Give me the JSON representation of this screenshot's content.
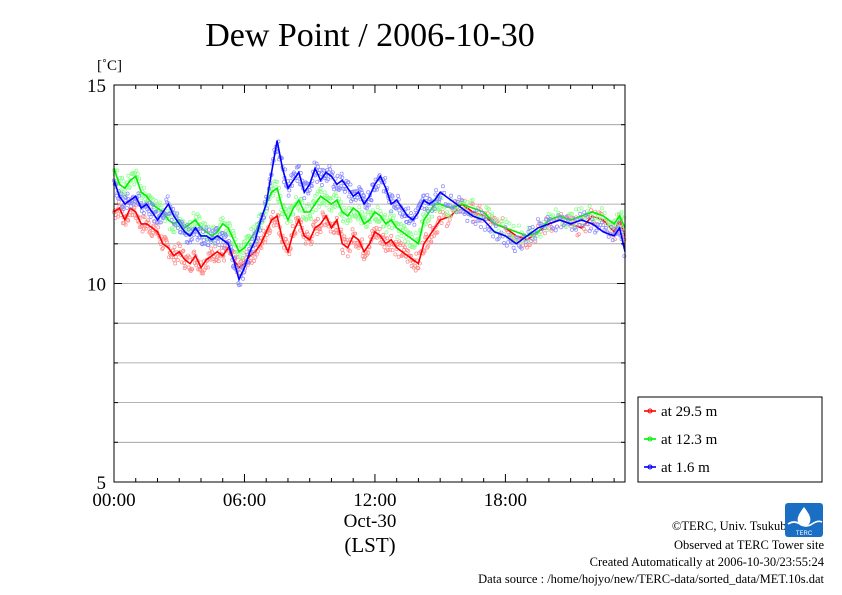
{
  "chart_data": {
    "type": "line",
    "title": "Dew Point / 2006-10-30",
    "ylabel": "[˚C]",
    "xlabel": "(LST)",
    "date_label": "Oct-30",
    "ylim": [
      5,
      15
    ],
    "xlim": [
      0,
      23.5
    ],
    "yticks": [
      5,
      10,
      15
    ],
    "ytick_labels": [
      "5",
      "10",
      "15"
    ],
    "xticks": [
      0,
      6,
      12,
      18
    ],
    "xtick_labels": [
      "00:00",
      "06:00",
      "12:00",
      "18:00"
    ],
    "grid": true,
    "legend_position": "lower-right, outside plot",
    "series": [
      {
        "name": "at 29.5 m",
        "color": "#ff0000",
        "x": [
          0,
          0.25,
          0.5,
          0.75,
          1,
          1.25,
          1.5,
          1.75,
          2,
          2.25,
          2.5,
          2.75,
          3,
          3.25,
          3.5,
          3.75,
          4,
          4.25,
          4.5,
          4.75,
          5,
          5.25,
          5.5,
          5.75,
          6,
          6.25,
          6.5,
          6.75,
          7,
          7.25,
          7.5,
          7.75,
          8,
          8.25,
          8.5,
          8.75,
          9,
          9.25,
          9.5,
          9.75,
          10,
          10.25,
          10.5,
          10.75,
          11,
          11.25,
          11.5,
          11.75,
          12,
          12.25,
          12.5,
          12.75,
          13,
          13.25,
          13.5,
          13.75,
          14,
          14.25,
          14.5,
          14.75,
          15,
          15.5,
          16,
          16.5,
          17,
          17.5,
          18,
          18.5,
          19,
          19.5,
          20,
          20.5,
          21,
          21.5,
          22,
          22.5,
          23,
          23.25,
          23.5
        ],
        "values": [
          11.8,
          11.9,
          11.6,
          11.9,
          11.8,
          11.5,
          11.5,
          11.4,
          11.3,
          11.0,
          10.9,
          10.7,
          10.8,
          10.6,
          10.5,
          10.7,
          10.4,
          10.6,
          10.7,
          10.8,
          10.7,
          10.9,
          10.6,
          10.4,
          10.5,
          10.7,
          10.8,
          11.0,
          11.3,
          11.6,
          11.7,
          11.1,
          10.8,
          11.3,
          11.6,
          11.2,
          11.1,
          11.4,
          11.5,
          11.7,
          11.4,
          11.6,
          11.0,
          10.9,
          11.2,
          11.1,
          10.8,
          11.0,
          11.3,
          11.2,
          11.0,
          11.1,
          10.9,
          10.8,
          10.7,
          10.6,
          10.5,
          11.0,
          11.2,
          11.4,
          11.6,
          11.7,
          12.0,
          11.8,
          11.7,
          11.5,
          11.4,
          11.2,
          11.1,
          11.3,
          11.5,
          11.6,
          11.5,
          11.4,
          11.7,
          11.6,
          11.3,
          11.6,
          11.2
        ]
      },
      {
        "name": "at 12.3 m",
        "color": "#00ee00",
        "x": [
          0,
          0.25,
          0.5,
          0.75,
          1,
          1.25,
          1.5,
          1.75,
          2,
          2.25,
          2.5,
          2.75,
          3,
          3.25,
          3.5,
          3.75,
          4,
          4.25,
          4.5,
          4.75,
          5,
          5.25,
          5.5,
          5.75,
          6,
          6.25,
          6.5,
          6.75,
          7,
          7.25,
          7.5,
          7.75,
          8,
          8.25,
          8.5,
          8.75,
          9,
          9.25,
          9.5,
          9.75,
          10,
          10.25,
          10.5,
          10.75,
          11,
          11.25,
          11.5,
          11.75,
          12,
          12.25,
          12.5,
          12.75,
          13,
          13.25,
          13.5,
          13.75,
          14,
          14.25,
          14.5,
          14.75,
          15,
          15.5,
          16,
          16.5,
          17,
          17.5,
          18,
          18.5,
          19,
          19.5,
          20,
          20.5,
          21,
          21.5,
          22,
          22.5,
          23,
          23.25,
          23.5
        ],
        "values": [
          12.9,
          12.5,
          12.4,
          12.6,
          12.7,
          12.3,
          12.2,
          12.0,
          11.9,
          11.8,
          11.6,
          11.5,
          11.6,
          11.4,
          11.5,
          11.6,
          11.4,
          11.3,
          11.2,
          11.3,
          11.5,
          11.4,
          11.1,
          10.8,
          10.9,
          11.1,
          11.3,
          11.6,
          12.0,
          12.3,
          12.4,
          11.9,
          11.6,
          11.9,
          12.1,
          11.8,
          11.8,
          12.0,
          12.2,
          12.1,
          12.0,
          12.1,
          11.8,
          11.7,
          11.9,
          11.8,
          11.5,
          11.6,
          11.8,
          11.7,
          11.5,
          11.6,
          11.4,
          11.3,
          11.2,
          11.1,
          11.0,
          11.6,
          11.8,
          12.0,
          12.0,
          11.9,
          12.0,
          11.9,
          11.8,
          11.5,
          11.4,
          11.3,
          11.2,
          11.3,
          11.6,
          11.7,
          11.6,
          11.7,
          11.8,
          11.7,
          11.5,
          11.7,
          11.4
        ]
      },
      {
        "name": "at 1.6 m",
        "color": "#0000ff",
        "x": [
          0,
          0.25,
          0.5,
          0.75,
          1,
          1.25,
          1.5,
          1.75,
          2,
          2.25,
          2.5,
          2.75,
          3,
          3.25,
          3.5,
          3.75,
          4,
          4.25,
          4.5,
          4.75,
          5,
          5.25,
          5.5,
          5.75,
          6,
          6.25,
          6.5,
          6.75,
          7,
          7.25,
          7.5,
          7.75,
          8,
          8.25,
          8.5,
          8.75,
          9,
          9.25,
          9.5,
          9.75,
          10,
          10.25,
          10.5,
          10.75,
          11,
          11.25,
          11.5,
          11.75,
          12,
          12.25,
          12.5,
          12.75,
          13,
          13.25,
          13.5,
          13.75,
          14,
          14.25,
          14.5,
          14.75,
          15,
          15.5,
          16,
          16.5,
          17,
          17.5,
          18,
          18.5,
          19,
          19.5,
          20,
          20.5,
          21,
          21.5,
          22,
          22.5,
          23,
          23.25,
          23.5
        ],
        "values": [
          12.6,
          12.2,
          12.0,
          12.1,
          12.2,
          11.9,
          12.0,
          11.8,
          11.6,
          11.8,
          12.0,
          11.7,
          11.5,
          11.3,
          11.2,
          11.4,
          11.2,
          11.2,
          11.1,
          11.2,
          11.1,
          11.0,
          10.6,
          10.1,
          10.4,
          10.8,
          11.1,
          11.6,
          12.0,
          12.8,
          13.6,
          12.9,
          12.4,
          12.6,
          12.8,
          12.3,
          12.5,
          12.9,
          12.6,
          12.8,
          12.7,
          12.5,
          12.6,
          12.4,
          12.2,
          12.3,
          12.0,
          12.2,
          12.5,
          12.7,
          12.4,
          12.0,
          12.1,
          11.9,
          11.7,
          11.6,
          11.8,
          12.1,
          12.0,
          12.1,
          12.3,
          12.1,
          11.9,
          11.7,
          11.6,
          11.3,
          11.2,
          11.0,
          11.2,
          11.4,
          11.5,
          11.6,
          11.5,
          11.6,
          11.5,
          11.3,
          11.2,
          11.4,
          10.8
        ]
      }
    ]
  },
  "credits": {
    "copyright": "©TERC, Univ. Tsukuba",
    "observed": "Observed at TERC Tower site",
    "created": "Created Automatically at 2006-10-30/23:55:24",
    "source": "Data source : /home/hojyo/new/TERC-data/sorted_data/MET.10s.dat",
    "logo_text": "TERC"
  }
}
